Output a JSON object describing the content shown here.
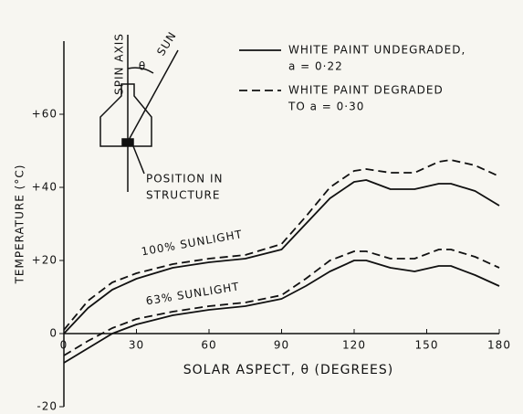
{
  "chart_data": {
    "type": "line",
    "x_label": "SOLAR ASPECT, θ (DEGREES)",
    "y_label": "TEMPERATURE (°C)",
    "xlim": [
      0,
      180
    ],
    "xticks": [
      0,
      30,
      60,
      90,
      120,
      150,
      180
    ],
    "ylim": [
      -20,
      80
    ],
    "yticks": [
      -20,
      0,
      {
        "value": 20,
        "label": "+20"
      },
      {
        "value": 40,
        "label": "+40"
      },
      {
        "value": 60,
        "label": "+60"
      }
    ],
    "x": [
      0,
      10,
      20,
      30,
      45,
      60,
      75,
      90,
      100,
      110,
      120,
      125,
      135,
      145,
      155,
      160,
      170,
      180
    ],
    "series": [
      {
        "color": "#111111",
        "dashed": false,
        "values": [
          0,
          7,
          12,
          15,
          18,
          19.5,
          20.5,
          23,
          30,
          37,
          41.5,
          42,
          39.5,
          39.5,
          41,
          41,
          39,
          35
        ]
      },
      {
        "color": "#111111",
        "dashed": true,
        "values": [
          1,
          9,
          14,
          16.5,
          19,
          20.5,
          21.5,
          24.5,
          32,
          40,
          44.5,
          45,
          44,
          44,
          47,
          47.5,
          46,
          43
        ]
      },
      {
        "color": "#111111",
        "dashed": false,
        "values": [
          -8,
          -4,
          0,
          2.5,
          5,
          6.5,
          7.5,
          9.5,
          13,
          17,
          20,
          20,
          18,
          17,
          18.5,
          18.5,
          16,
          13
        ]
      },
      {
        "color": "#111111",
        "dashed": true,
        "values": [
          -6,
          -2,
          1.5,
          4,
          6,
          7.5,
          8.5,
          10.5,
          15,
          20,
          22.5,
          22.5,
          20.5,
          20.5,
          23,
          23,
          21,
          18
        ]
      }
    ],
    "annotations": [
      "100% SUNLIGHT",
      "63% SUNLIGHT"
    ],
    "legend": [
      {
        "dashed": false,
        "label": [
          "WHITE PAINT UNDEGRADED,",
          "a = 0·22"
        ]
      },
      {
        "dashed": true,
        "label": [
          "WHITE PAINT DEGRADED",
          "TO a = 0·30"
        ]
      }
    ],
    "inset": {
      "spin_axis": "SPIN AXIS",
      "angle": "θ",
      "sun": "SUN",
      "position": [
        "POSITION IN",
        "STRUCTURE"
      ]
    }
  }
}
